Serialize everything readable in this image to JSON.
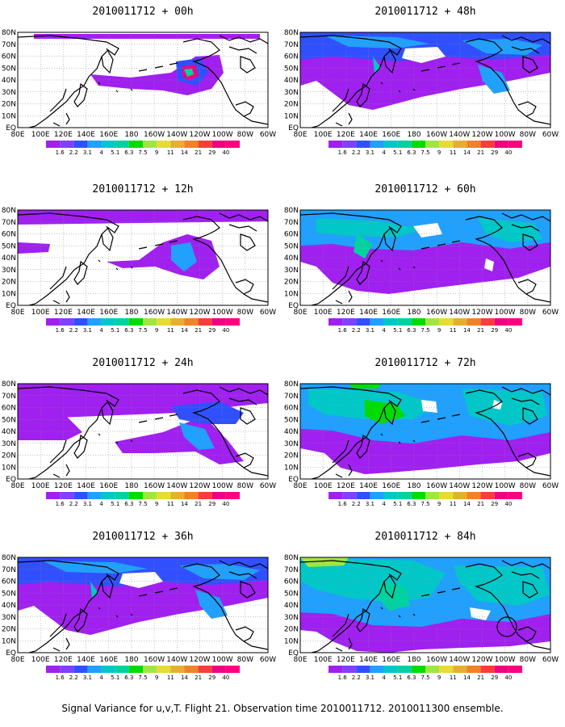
{
  "caption": "Signal Variance for u,v,T. Flight 21. Observation time 2010011712. 2010011300 ensemble.",
  "panels": [
    {
      "title": "2010011712 + 00h",
      "level": 0
    },
    {
      "title": "2010011712 + 12h",
      "level": 1
    },
    {
      "title": "2010011712 + 24h",
      "level": 2
    },
    {
      "title": "2010011712 + 36h",
      "level": 3
    },
    {
      "title": "2010011712 + 48h",
      "level": 3
    },
    {
      "title": "2010011712 + 60h",
      "level": 4
    },
    {
      "title": "2010011712 + 72h",
      "level": 5
    },
    {
      "title": "2010011712 + 84h",
      "level": 6
    }
  ],
  "lon_labels": [
    "80E",
    "100E",
    "120E",
    "140E",
    "160E",
    "180",
    "160W",
    "140W",
    "120W",
    "100W",
    "80W",
    "60W"
  ],
  "lat_labels": [
    "80N",
    "70N",
    "60N",
    "50N",
    "40N",
    "30N",
    "20N",
    "10N",
    "EQ"
  ],
  "colorbar": {
    "labels": [
      "1.6",
      "2.2",
      "3.1",
      "4",
      "5.1",
      "6.3",
      "7.5",
      "9",
      "11",
      "14",
      "21",
      "29",
      "40"
    ],
    "colors": [
      "#a020f0",
      "#8040ff",
      "#3050ff",
      "#20a0ff",
      "#00c8c8",
      "#00d2a0",
      "#00dc00",
      "#a0e640",
      "#e6dc32",
      "#e6af2d",
      "#f08228",
      "#fa3c3c",
      "#f00082",
      "#ff0080"
    ]
  },
  "land_color": "#000000"
}
